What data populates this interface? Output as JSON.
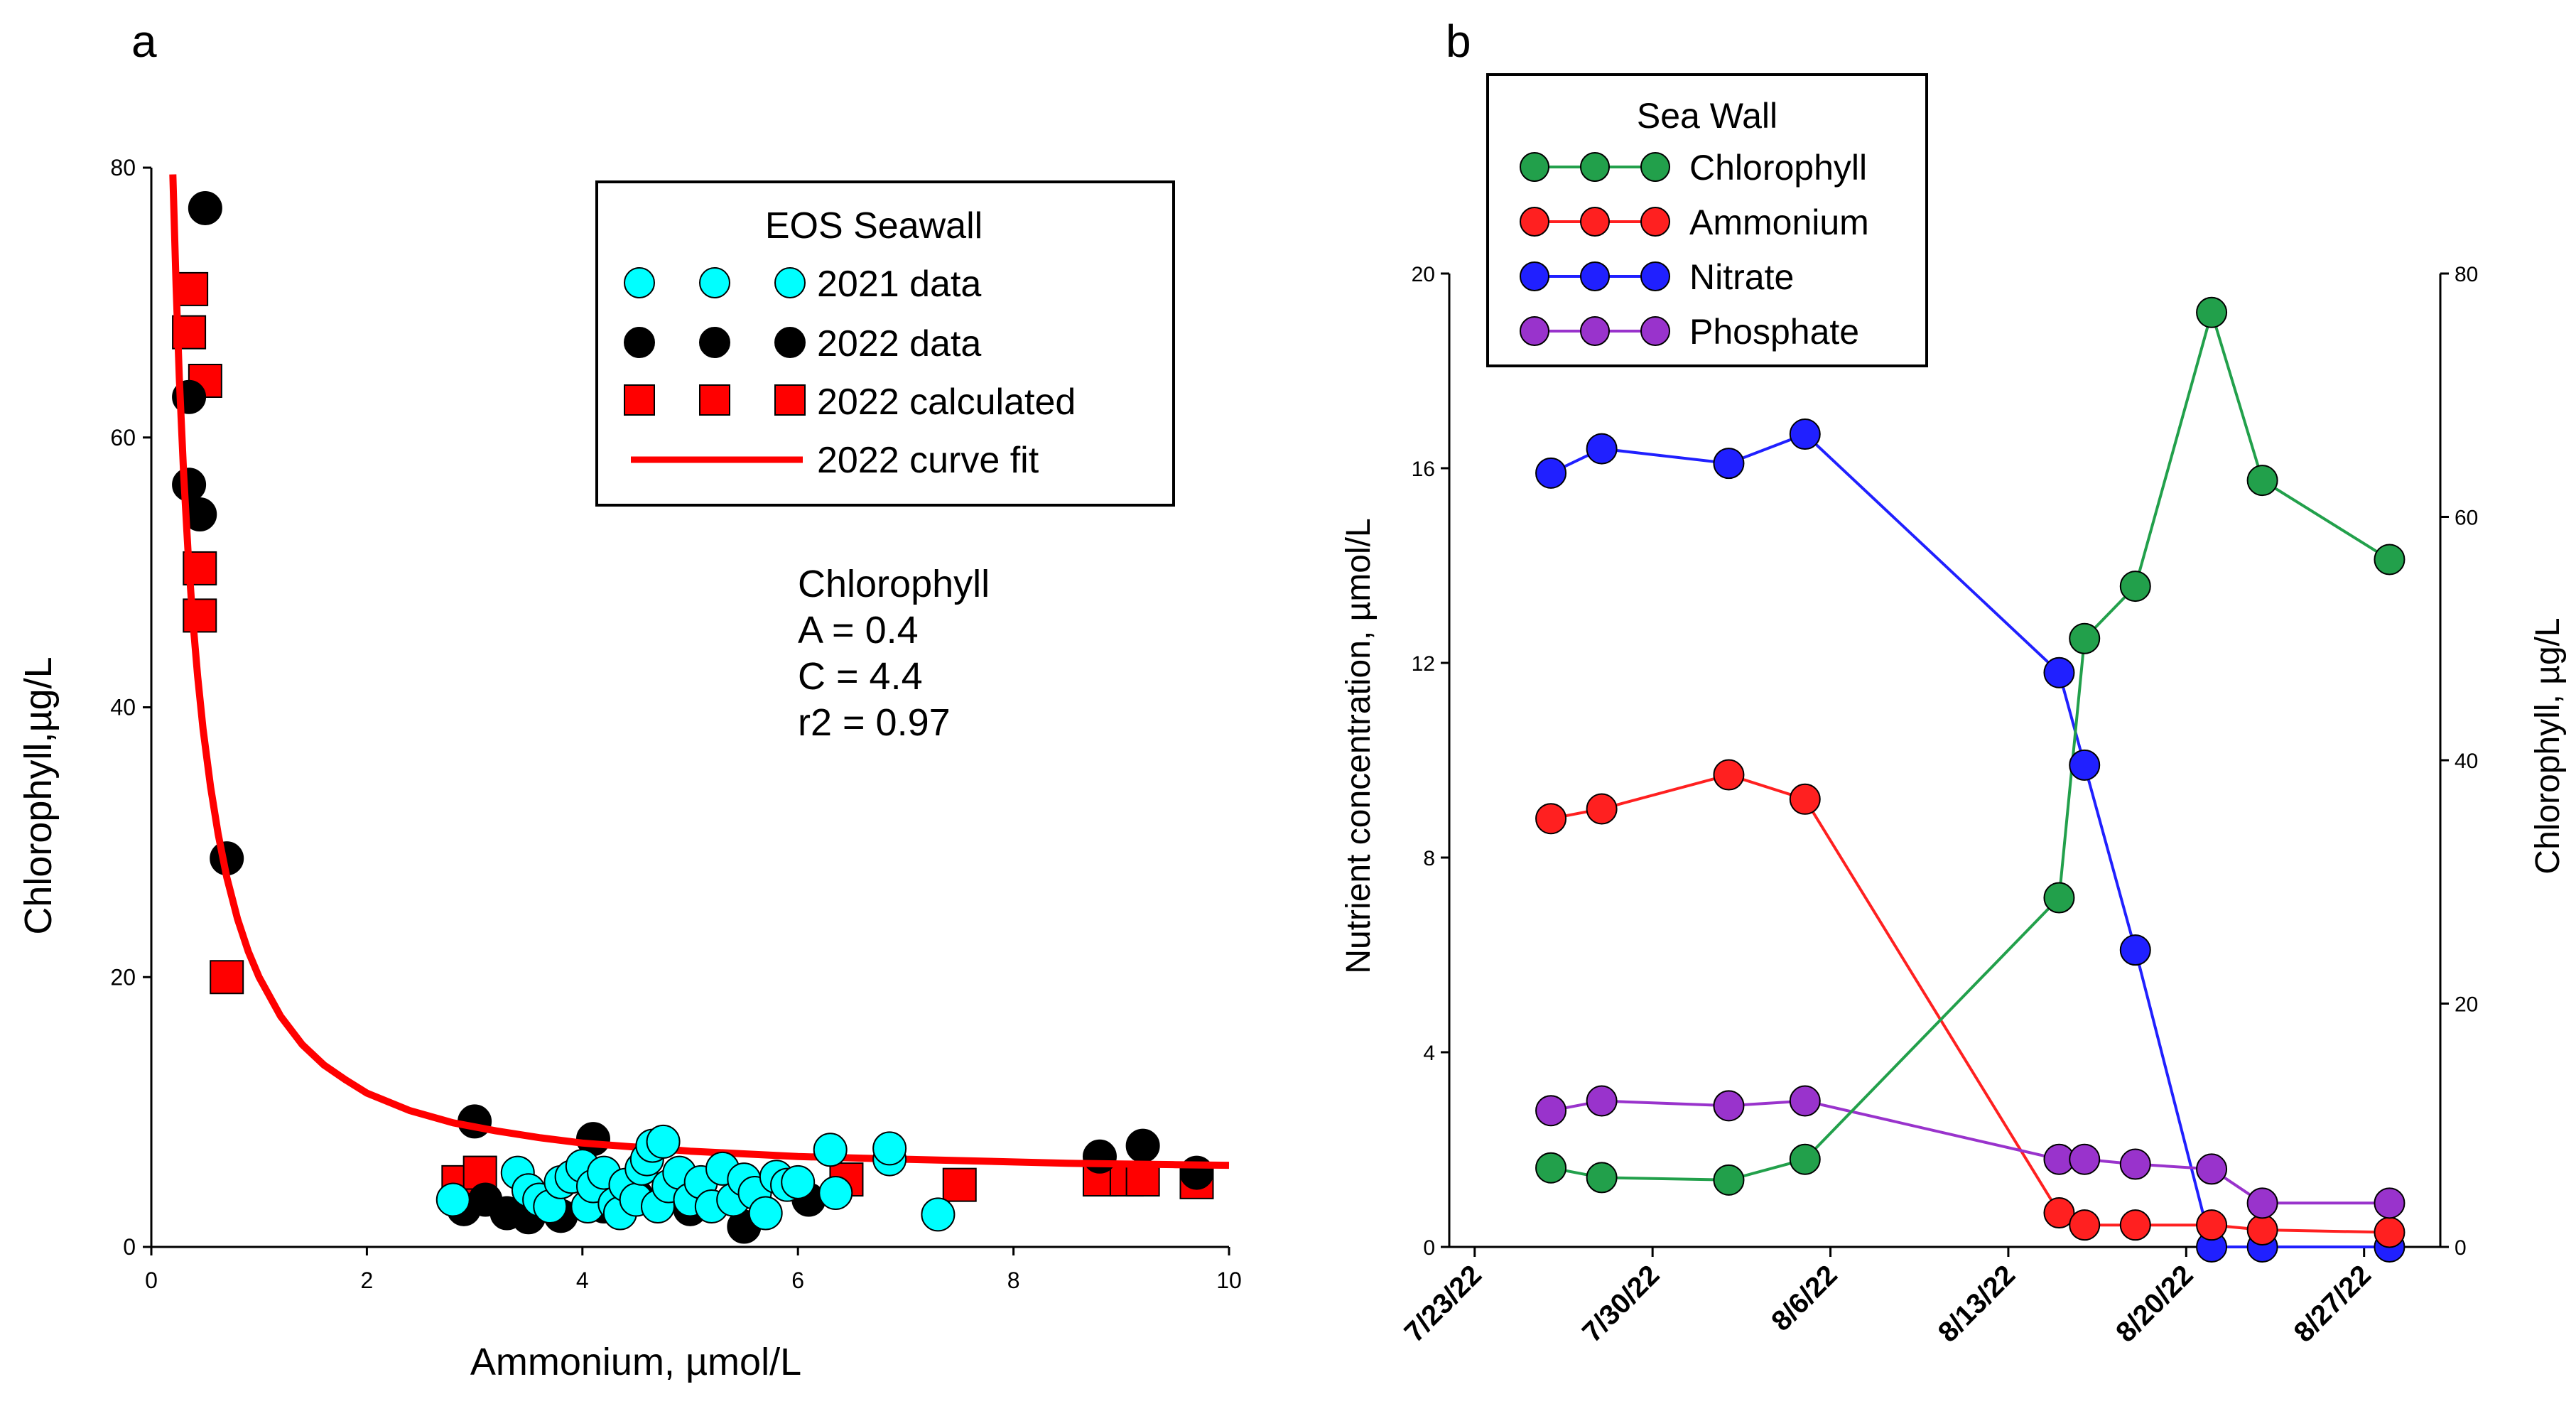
{
  "chart_data": [
    {
      "type": "scatter",
      "panel_label": "a",
      "xlabel": "Ammonium, µmol/L",
      "ylabel": "Chlorophyll,µg/L",
      "xlim": [
        0,
        10
      ],
      "ylim": [
        0,
        80
      ],
      "xticks": [
        0,
        2,
        4,
        6,
        8,
        10
      ],
      "yticks": [
        0,
        20,
        40,
        60,
        80
      ],
      "legend": {
        "title": "EOS Seawall",
        "placement": "top-right",
        "entries": [
          "2021 data",
          "2022 data",
          "2022 calculated",
          "2022 curve fit"
        ]
      },
      "annotation": [
        "Chlorophyll",
        "A = 0.4",
        "C = 4.4",
        "r2 = 0.97"
      ],
      "series": [
        {
          "name": "2022 data",
          "marker": "circle",
          "color": "#000000",
          "points": [
            [
              0.5,
              77
            ],
            [
              0.35,
              63
            ],
            [
              0.35,
              56.5
            ],
            [
              0.45,
              54.3
            ],
            [
              0.7,
              28.8
            ],
            [
              3.0,
              9.3
            ],
            [
              2.9,
              2.8
            ],
            [
              3.1,
              3.5
            ],
            [
              3.3,
              2.5
            ],
            [
              3.5,
              2.2
            ],
            [
              3.8,
              2.3
            ],
            [
              4.1,
              8.0
            ],
            [
              4.2,
              3.0
            ],
            [
              4.5,
              3.8
            ],
            [
              5.0,
              2.8
            ],
            [
              5.5,
              1.5
            ],
            [
              6.1,
              3.5
            ],
            [
              8.8,
              6.7
            ],
            [
              9.2,
              7.5
            ],
            [
              9.7,
              5.5
            ]
          ]
        },
        {
          "name": "2021 data",
          "marker": "circle",
          "color": "#00FFFF",
          "points": [
            [
              2.8,
              3.5
            ],
            [
              3.4,
              5.5
            ],
            [
              3.5,
              4.2
            ],
            [
              3.6,
              3.5
            ],
            [
              3.7,
              3.0
            ],
            [
              3.8,
              4.8
            ],
            [
              3.9,
              5.2
            ],
            [
              4.0,
              6.0
            ],
            [
              4.05,
              3.0
            ],
            [
              4.1,
              4.5
            ],
            [
              4.2,
              5.5
            ],
            [
              4.3,
              3.2
            ],
            [
              4.35,
              2.5
            ],
            [
              4.4,
              4.6
            ],
            [
              4.5,
              3.5
            ],
            [
              4.55,
              5.8
            ],
            [
              4.6,
              6.5
            ],
            [
              4.65,
              7.5
            ],
            [
              4.7,
              3.0
            ],
            [
              4.75,
              7.8
            ],
            [
              4.8,
              4.5
            ],
            [
              4.9,
              5.5
            ],
            [
              5.0,
              3.5
            ],
            [
              5.1,
              4.8
            ],
            [
              5.2,
              3.0
            ],
            [
              5.3,
              5.8
            ],
            [
              5.4,
              3.5
            ],
            [
              5.5,
              5.0
            ],
            [
              5.6,
              4.0
            ],
            [
              5.7,
              2.5
            ],
            [
              5.8,
              5.2
            ],
            [
              5.9,
              4.6
            ],
            [
              6.0,
              4.8
            ],
            [
              6.3,
              7.2
            ],
            [
              6.35,
              4.0
            ],
            [
              6.85,
              6.5
            ],
            [
              6.85,
              7.3
            ],
            [
              7.3,
              2.4
            ]
          ]
        },
        {
          "name": "2022 calculated",
          "marker": "square",
          "color": "#FF0000",
          "points": [
            [
              0.37,
              71
            ],
            [
              0.35,
              67.8
            ],
            [
              0.5,
              64.2
            ],
            [
              0.45,
              50.3
            ],
            [
              0.45,
              46.8
            ],
            [
              0.7,
              20
            ],
            [
              2.85,
              4.8
            ],
            [
              3.05,
              5.5
            ],
            [
              6.45,
              5.0
            ],
            [
              7.5,
              4.6
            ],
            [
              8.8,
              5.0
            ],
            [
              9.05,
              5.0
            ],
            [
              9.2,
              5.0
            ],
            [
              9.7,
              4.8
            ]
          ]
        },
        {
          "name": "2022 curve fit",
          "marker": "line",
          "color": "#FF0000",
          "x": [
            0.2,
            0.23,
            0.26,
            0.3,
            0.34,
            0.38,
            0.43,
            0.48,
            0.55,
            0.62,
            0.7,
            0.8,
            0.9,
            1.0,
            1.2,
            1.4,
            1.6,
            1.8,
            2.0,
            2.4,
            2.8,
            3.2,
            3.6,
            4.0,
            4.5,
            5.0,
            5.5,
            6.0,
            6.5,
            7.0,
            7.5,
            8.0,
            8.5,
            9.0,
            9.5,
            10.0
          ],
          "y": [
            79.5,
            71.2,
            64.4,
            57.3,
            51.6,
            47.0,
            42.3,
            38.4,
            34.1,
            30.6,
            27.4,
            24.3,
            21.9,
            20.0,
            17.1,
            15.0,
            13.5,
            12.4,
            11.4,
            10.1,
            9.2,
            8.6,
            8.1,
            7.7,
            7.4,
            7.1,
            6.9,
            6.7,
            6.6,
            6.5,
            6.4,
            6.3,
            6.2,
            6.15,
            6.1,
            6.05
          ]
        }
      ]
    },
    {
      "type": "line",
      "panel_label": "b",
      "xlabel": "",
      "ylabel_left": "Nutrient concentration, µmol/L",
      "ylabel_right": "Chlorophyll, µg/L",
      "ylim_left": [
        0,
        20
      ],
      "ylim_right": [
        0,
        80
      ],
      "yticks_left": [
        0,
        4,
        8,
        12,
        16,
        20
      ],
      "yticks_right": [
        0,
        20,
        40,
        60,
        80
      ],
      "x_unit": "days since 7/23/22",
      "x_range": [
        -1,
        38
      ],
      "x_ticks": [
        0,
        7,
        14,
        21,
        28,
        35
      ],
      "x_tick_labels": [
        "7/23/22",
        "7/30/22",
        "8/6/22",
        "8/13/22",
        "8/20/22",
        "8/27/22"
      ],
      "legend": {
        "title": "Sea Wall",
        "placement": "top-left",
        "entries": [
          "Chlorophyll",
          "Ammonium",
          "Nitrate",
          "Phosphate"
        ]
      },
      "x": [
        3,
        5,
        10,
        13,
        23,
        24,
        26,
        29,
        31,
        36
      ],
      "series": [
        {
          "name": "Chlorophyll",
          "axis": "right",
          "color": "#22A04B",
          "values": [
            6.5,
            5.7,
            5.5,
            7.2,
            28.7,
            50,
            54.3,
            76.8,
            63,
            56.5
          ]
        },
        {
          "name": "Ammonium",
          "axis": "left",
          "color": "#FF2020",
          "values": [
            8.8,
            9.0,
            9.7,
            9.2,
            0.7,
            0.45,
            0.45,
            0.45,
            0.35,
            0.3
          ]
        },
        {
          "name": "Nitrate",
          "axis": "left",
          "color": "#2020FF",
          "values": [
            15.9,
            16.4,
            16.1,
            16.7,
            11.8,
            9.9,
            6.1,
            0.0,
            0.0,
            0.0
          ]
        },
        {
          "name": "Phosphate",
          "axis": "left",
          "color": "#9933CC",
          "values": [
            2.8,
            3.0,
            2.9,
            3.0,
            1.8,
            1.8,
            1.7,
            1.6,
            0.9,
            0.9
          ]
        }
      ]
    }
  ]
}
